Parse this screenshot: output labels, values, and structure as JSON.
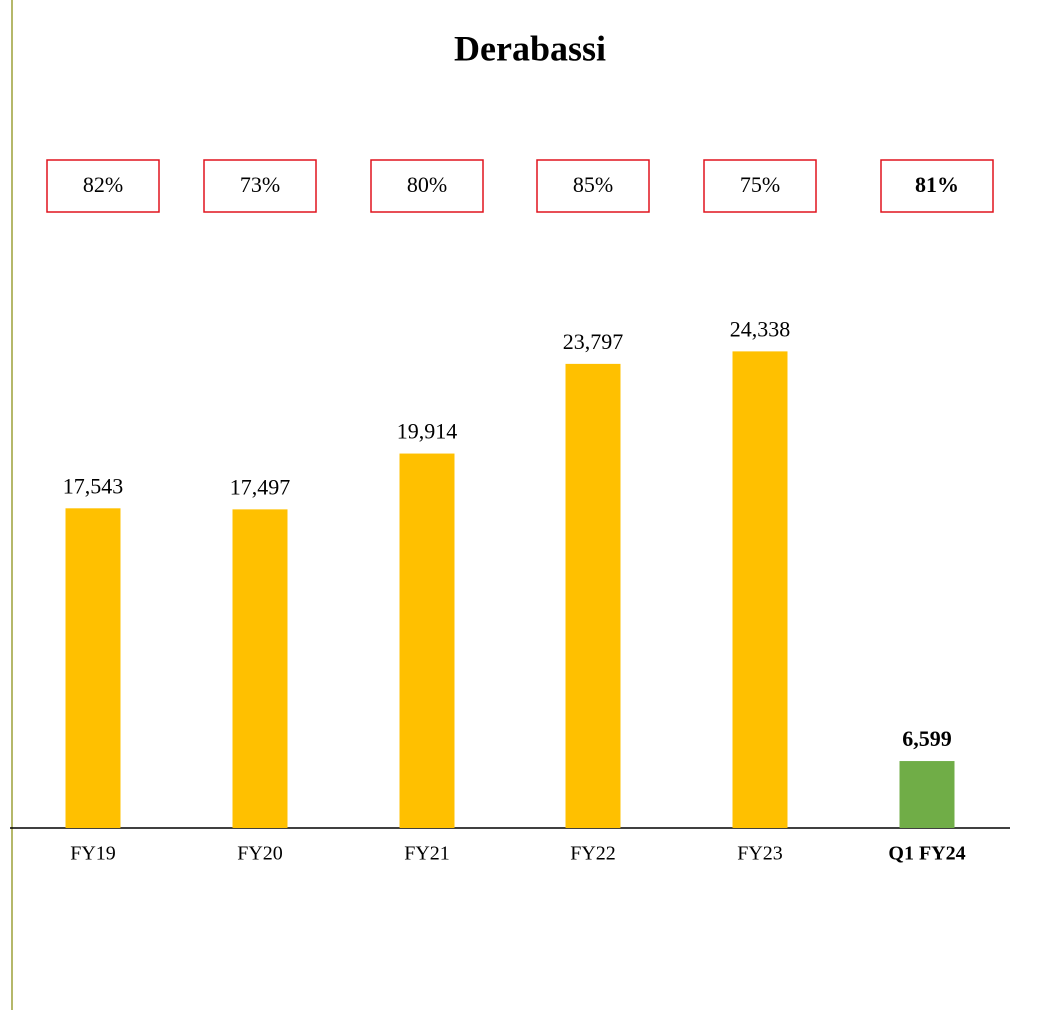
{
  "chart_data": {
    "type": "bar",
    "title": "Derabassi",
    "categories": [
      "FY19",
      "FY20",
      "FY21",
      "FY22",
      "FY23",
      "Q1 FY24"
    ],
    "values": [
      17543,
      17497,
      19914,
      23797,
      24338,
      6599
    ],
    "value_labels": [
      "17,543",
      "17,497",
      "19,914",
      "23,797",
      "24,338",
      "6,599"
    ],
    "colors": [
      "#ffc000",
      "#ffc000",
      "#ffc000",
      "#ffc000",
      "#ffc000",
      "#70ad47"
    ],
    "bold": [
      false,
      false,
      false,
      false,
      false,
      true
    ],
    "annotations": [
      "82%",
      "73%",
      "80%",
      "85%",
      "75%",
      "81%"
    ],
    "ylim": [
      3700,
      26000
    ]
  }
}
